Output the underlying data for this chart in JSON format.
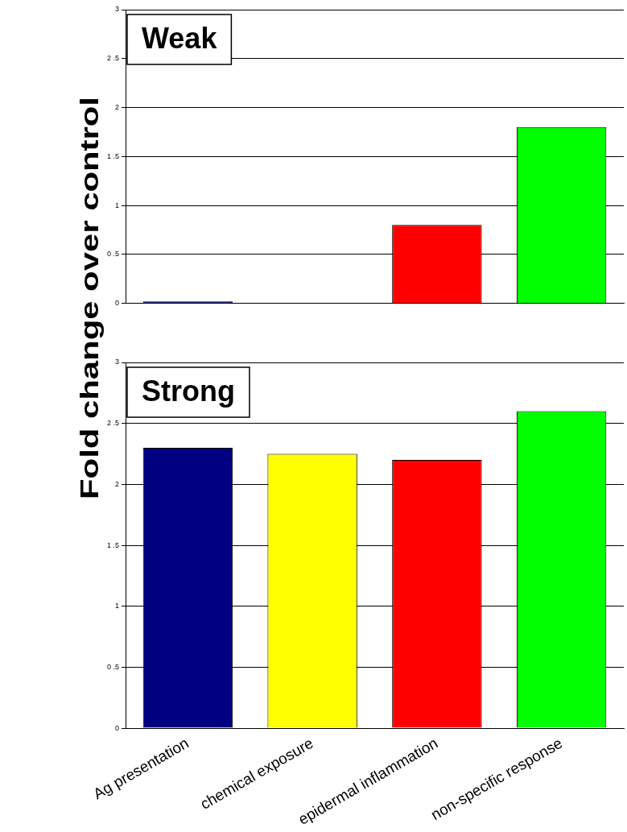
{
  "chart_data": [
    {
      "type": "bar",
      "title": "Weak",
      "ylabel": "Fold change over control",
      "categories": [
        null,
        null,
        null,
        null
      ],
      "values": [
        0.02,
        0,
        0.8,
        1.8
      ],
      "colors": [
        "#000080",
        "#ffff00",
        "#ff0000",
        "#00ff00"
      ],
      "ylim": [
        0,
        3
      ],
      "yticks": [
        0,
        {
          "value": 0.5,
          "label": "0 .5"
        },
        1,
        {
          "value": 1.5,
          "label": "1 .5"
        },
        2,
        {
          "value": 2.5,
          "label": "2 .5"
        },
        3
      ],
      "grid": "y",
      "tick_labels": "y"
    },
    {
      "type": "bar",
      "title": "Strong",
      "categories": [
        "Ag presentation",
        "chemical exposure",
        "epidermal inflammation",
        "non-specific response"
      ],
      "values": [
        2.3,
        2.25,
        2.2,
        2.6
      ],
      "colors": [
        "#000080",
        "#ffff00",
        "#ff0000",
        "#00ff00"
      ],
      "ylim": [
        0,
        3
      ],
      "yticks": [
        0,
        {
          "value": 0.5,
          "label": "0 .5"
        },
        1,
        {
          "value": 1.5,
          "label": "1 .5"
        },
        2,
        {
          "value": 2.5,
          "label": "2 .5"
        },
        3
      ],
      "grid": "y"
    }
  ]
}
